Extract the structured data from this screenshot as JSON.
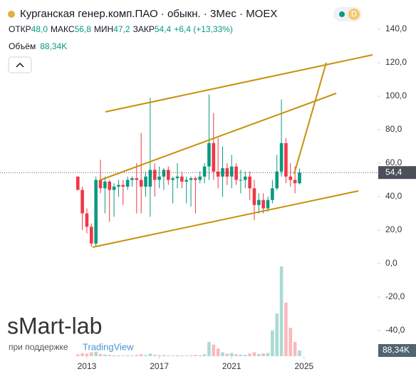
{
  "header": {
    "title": "Курганская генер.комп.ПАО · обыкн. · 3Мес · MOEX",
    "badge": "D",
    "open_label": "ОТКР",
    "open": "48,0",
    "high_label": "МАКС",
    "high": "56,8",
    "low_label": "МИН",
    "low": "47,2",
    "close_label": "ЗАКР",
    "close": "54,4",
    "change": "+6,4 (+13,33%)",
    "volume_label": "Объём",
    "volume": "88,34K"
  },
  "watermark": {
    "brand": "sMart-lab",
    "support": "при поддержке",
    "partner": "TradingView"
  },
  "chart_data": {
    "type": "candlestick",
    "up_color": "#089981",
    "down_color": "#f23645",
    "grid": false,
    "x": [
      2012.5,
      2012.75,
      2013,
      2013.25,
      2013.5,
      2013.75,
      2014,
      2014.25,
      2014.5,
      2014.75,
      2015,
      2015.25,
      2015.5,
      2015.75,
      2016,
      2016.25,
      2016.5,
      2016.75,
      2017,
      2017.25,
      2017.5,
      2017.75,
      2018,
      2018.25,
      2018.5,
      2018.75,
      2019,
      2019.25,
      2019.5,
      2019.75,
      2020,
      2020.25,
      2020.5,
      2020.75,
      2021,
      2021.25,
      2021.5,
      2021.75,
      2022,
      2022.25,
      2022.5,
      2022.75,
      2023,
      2023.25,
      2023.5,
      2023.75,
      2024,
      2024.25,
      2024.5,
      2024.75
    ],
    "open": [
      52,
      44,
      30,
      22,
      12,
      50,
      45,
      49,
      44,
      46,
      47,
      46,
      50,
      51,
      50,
      46,
      46,
      56,
      50,
      52,
      56,
      50,
      51,
      52,
      49,
      50,
      51,
      50,
      52,
      58,
      72,
      55,
      52,
      57,
      52,
      58,
      50,
      50,
      52,
      45,
      35,
      38,
      33,
      38,
      45,
      55,
      72,
      52,
      50,
      48
    ],
    "high": [
      52,
      46,
      33,
      24,
      52,
      62,
      52,
      50,
      48,
      50,
      50,
      52,
      52,
      60,
      78,
      55,
      99,
      60,
      58,
      57,
      58,
      52,
      60,
      55,
      52,
      52,
      52,
      55,
      60,
      101,
      90,
      75,
      70,
      60,
      65,
      60,
      56,
      55,
      55,
      50,
      42,
      42,
      40,
      50,
      65,
      98,
      75,
      60,
      58,
      56.8
    ],
    "low": [
      44,
      20,
      18,
      10,
      10,
      42,
      30,
      25,
      28,
      40,
      35,
      44,
      46,
      30,
      30,
      40,
      28,
      40,
      45,
      44,
      47,
      36,
      45,
      45,
      36,
      34,
      30,
      48,
      48,
      50,
      50,
      45,
      40,
      47,
      45,
      47,
      42,
      45,
      38,
      26,
      30,
      30,
      31,
      36,
      44,
      52,
      48,
      46,
      42,
      47.2
    ],
    "close": [
      44,
      30,
      22,
      12,
      50,
      45,
      49,
      44,
      46,
      47,
      46,
      50,
      51,
      50,
      46,
      52,
      56,
      50,
      52,
      56,
      50,
      51,
      52,
      49,
      50,
      51,
      50,
      52,
      58,
      72,
      55,
      52,
      57,
      52,
      58,
      50,
      50,
      52,
      45,
      35,
      38,
      33,
      38,
      45,
      55,
      72,
      52,
      50,
      48,
      54.4
    ],
    "volume": [
      30000,
      45000,
      40000,
      60000,
      70000,
      35000,
      25000,
      20000,
      15000,
      12000,
      10000,
      15000,
      12000,
      20000,
      30000,
      15000,
      40000,
      20000,
      15000,
      18000,
      12000,
      10000,
      15000,
      12000,
      10000,
      14000,
      20000,
      15000,
      30000,
      220000,
      180000,
      120000,
      60000,
      40000,
      50000,
      30000,
      25000,
      20000,
      40000,
      60000,
      35000,
      45000,
      50000,
      400000,
      660000,
      1390000,
      830000,
      440000,
      220000,
      88340
    ],
    "last_label": "54,4",
    "volume_last_label": "88,34K",
    "ylim": [
      -55.3,
      144.7
    ],
    "yticks": [
      {
        "value": -40,
        "label": "-40,0"
      },
      {
        "value": -20,
        "label": "-20,0"
      },
      {
        "value": 0,
        "label": "0,0"
      },
      {
        "value": 20,
        "label": "20,0"
      },
      {
        "value": 40,
        "label": "40,0"
      },
      {
        "value": 60,
        "label": "60,0"
      },
      {
        "value": 80,
        "label": "80,0"
      },
      {
        "value": 100,
        "label": "100,0"
      },
      {
        "value": 120,
        "label": "120,0"
      },
      {
        "value": 140,
        "label": "140,0"
      }
    ],
    "xlim": [
      2008.2,
      2029.06
    ],
    "xticks": [
      2013,
      2017,
      2021,
      2025
    ]
  }
}
